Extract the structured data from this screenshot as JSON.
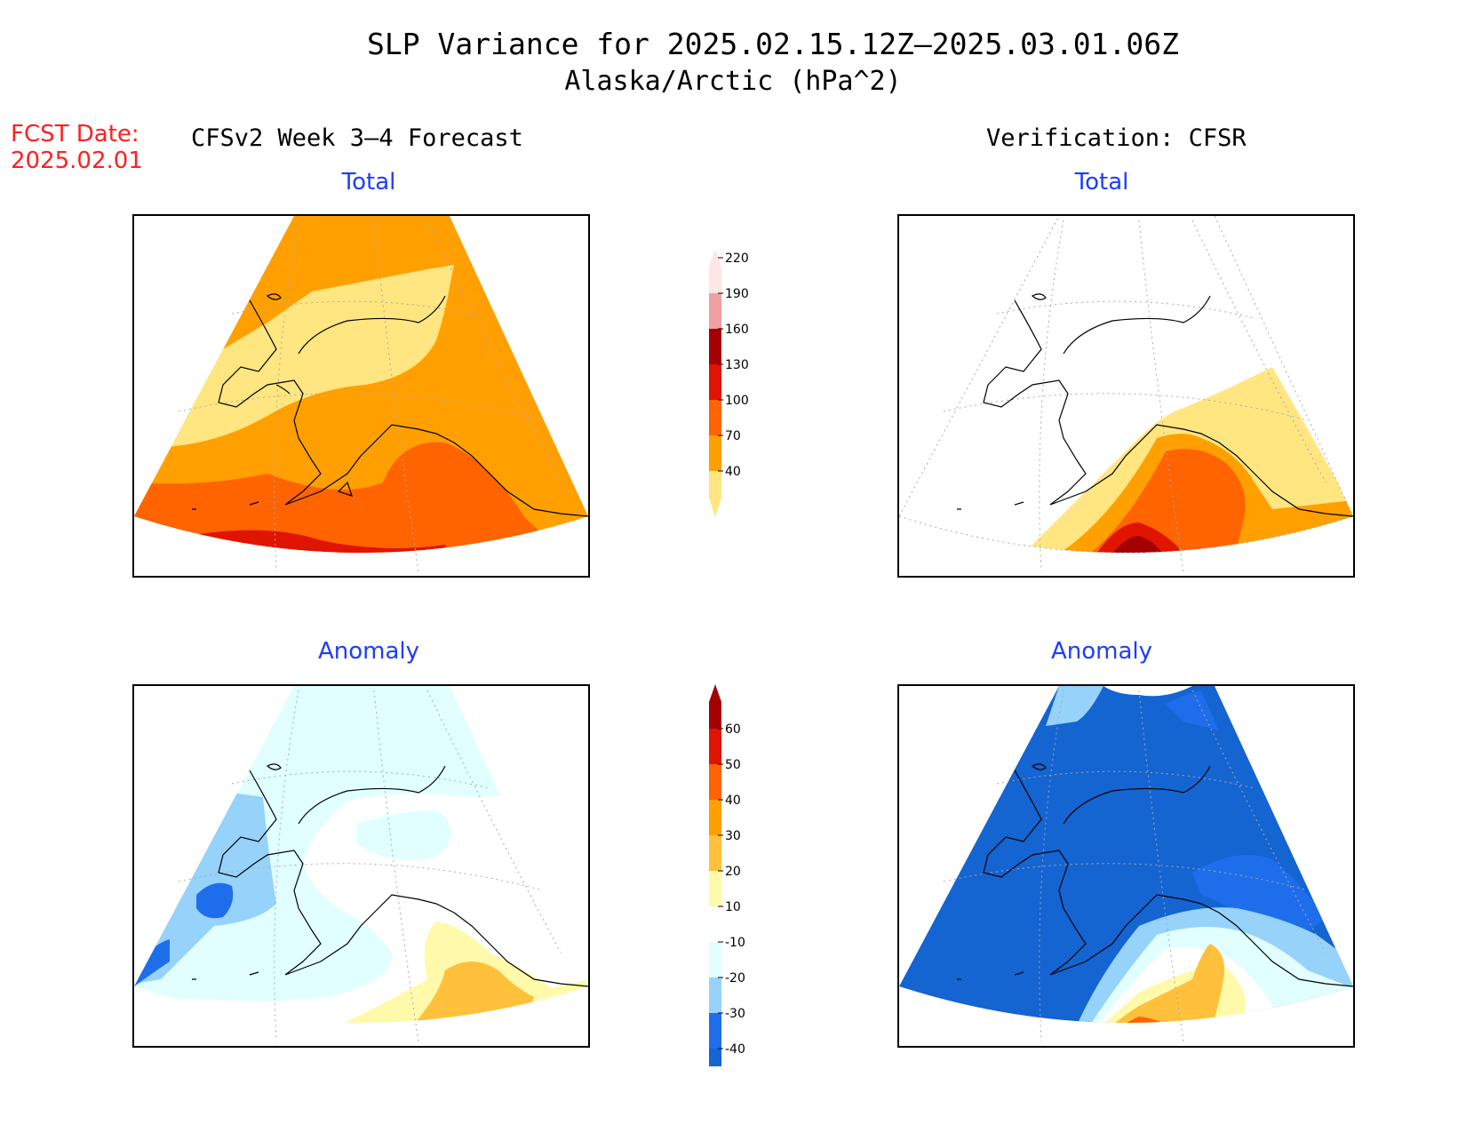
{
  "title": "SLP Variance for 2025.02.15.12Z—2025.03.01.06Z",
  "subtitle": "Alaska/Arctic (hPa^2)",
  "fcst_label": "FCST Date:",
  "fcst_date": "2025.02.01",
  "left_header": "CFSv2 Week 3—4 Forecast",
  "right_header": "Verification: CFSR",
  "panels": {
    "forecast_total": "Total",
    "verification_total": "Total",
    "forecast_anomaly": "Anomaly",
    "verification_anomaly": "Anomaly"
  },
  "total_scale": {
    "labels": [
      "40",
      "70",
      "100",
      "130",
      "160",
      "190",
      "220"
    ],
    "colors": [
      "#ffe680",
      "#ffa000",
      "#ff6400",
      "#e11400",
      "#a50000",
      "#f0a0a0",
      "#ffe6e6"
    ]
  },
  "anomaly_scale": {
    "labels": [
      "-40",
      "-30",
      "-20",
      "-10",
      "10",
      "20",
      "30",
      "40",
      "50",
      "60"
    ],
    "colors": [
      "#1464d2",
      "#1e6eeb",
      "#96d2fa",
      "#e1ffff",
      "#ffffff",
      "#fffaaa",
      "#ffc03c",
      "#ffa000",
      "#ff6400",
      "#e11400",
      "#a50000"
    ]
  }
}
